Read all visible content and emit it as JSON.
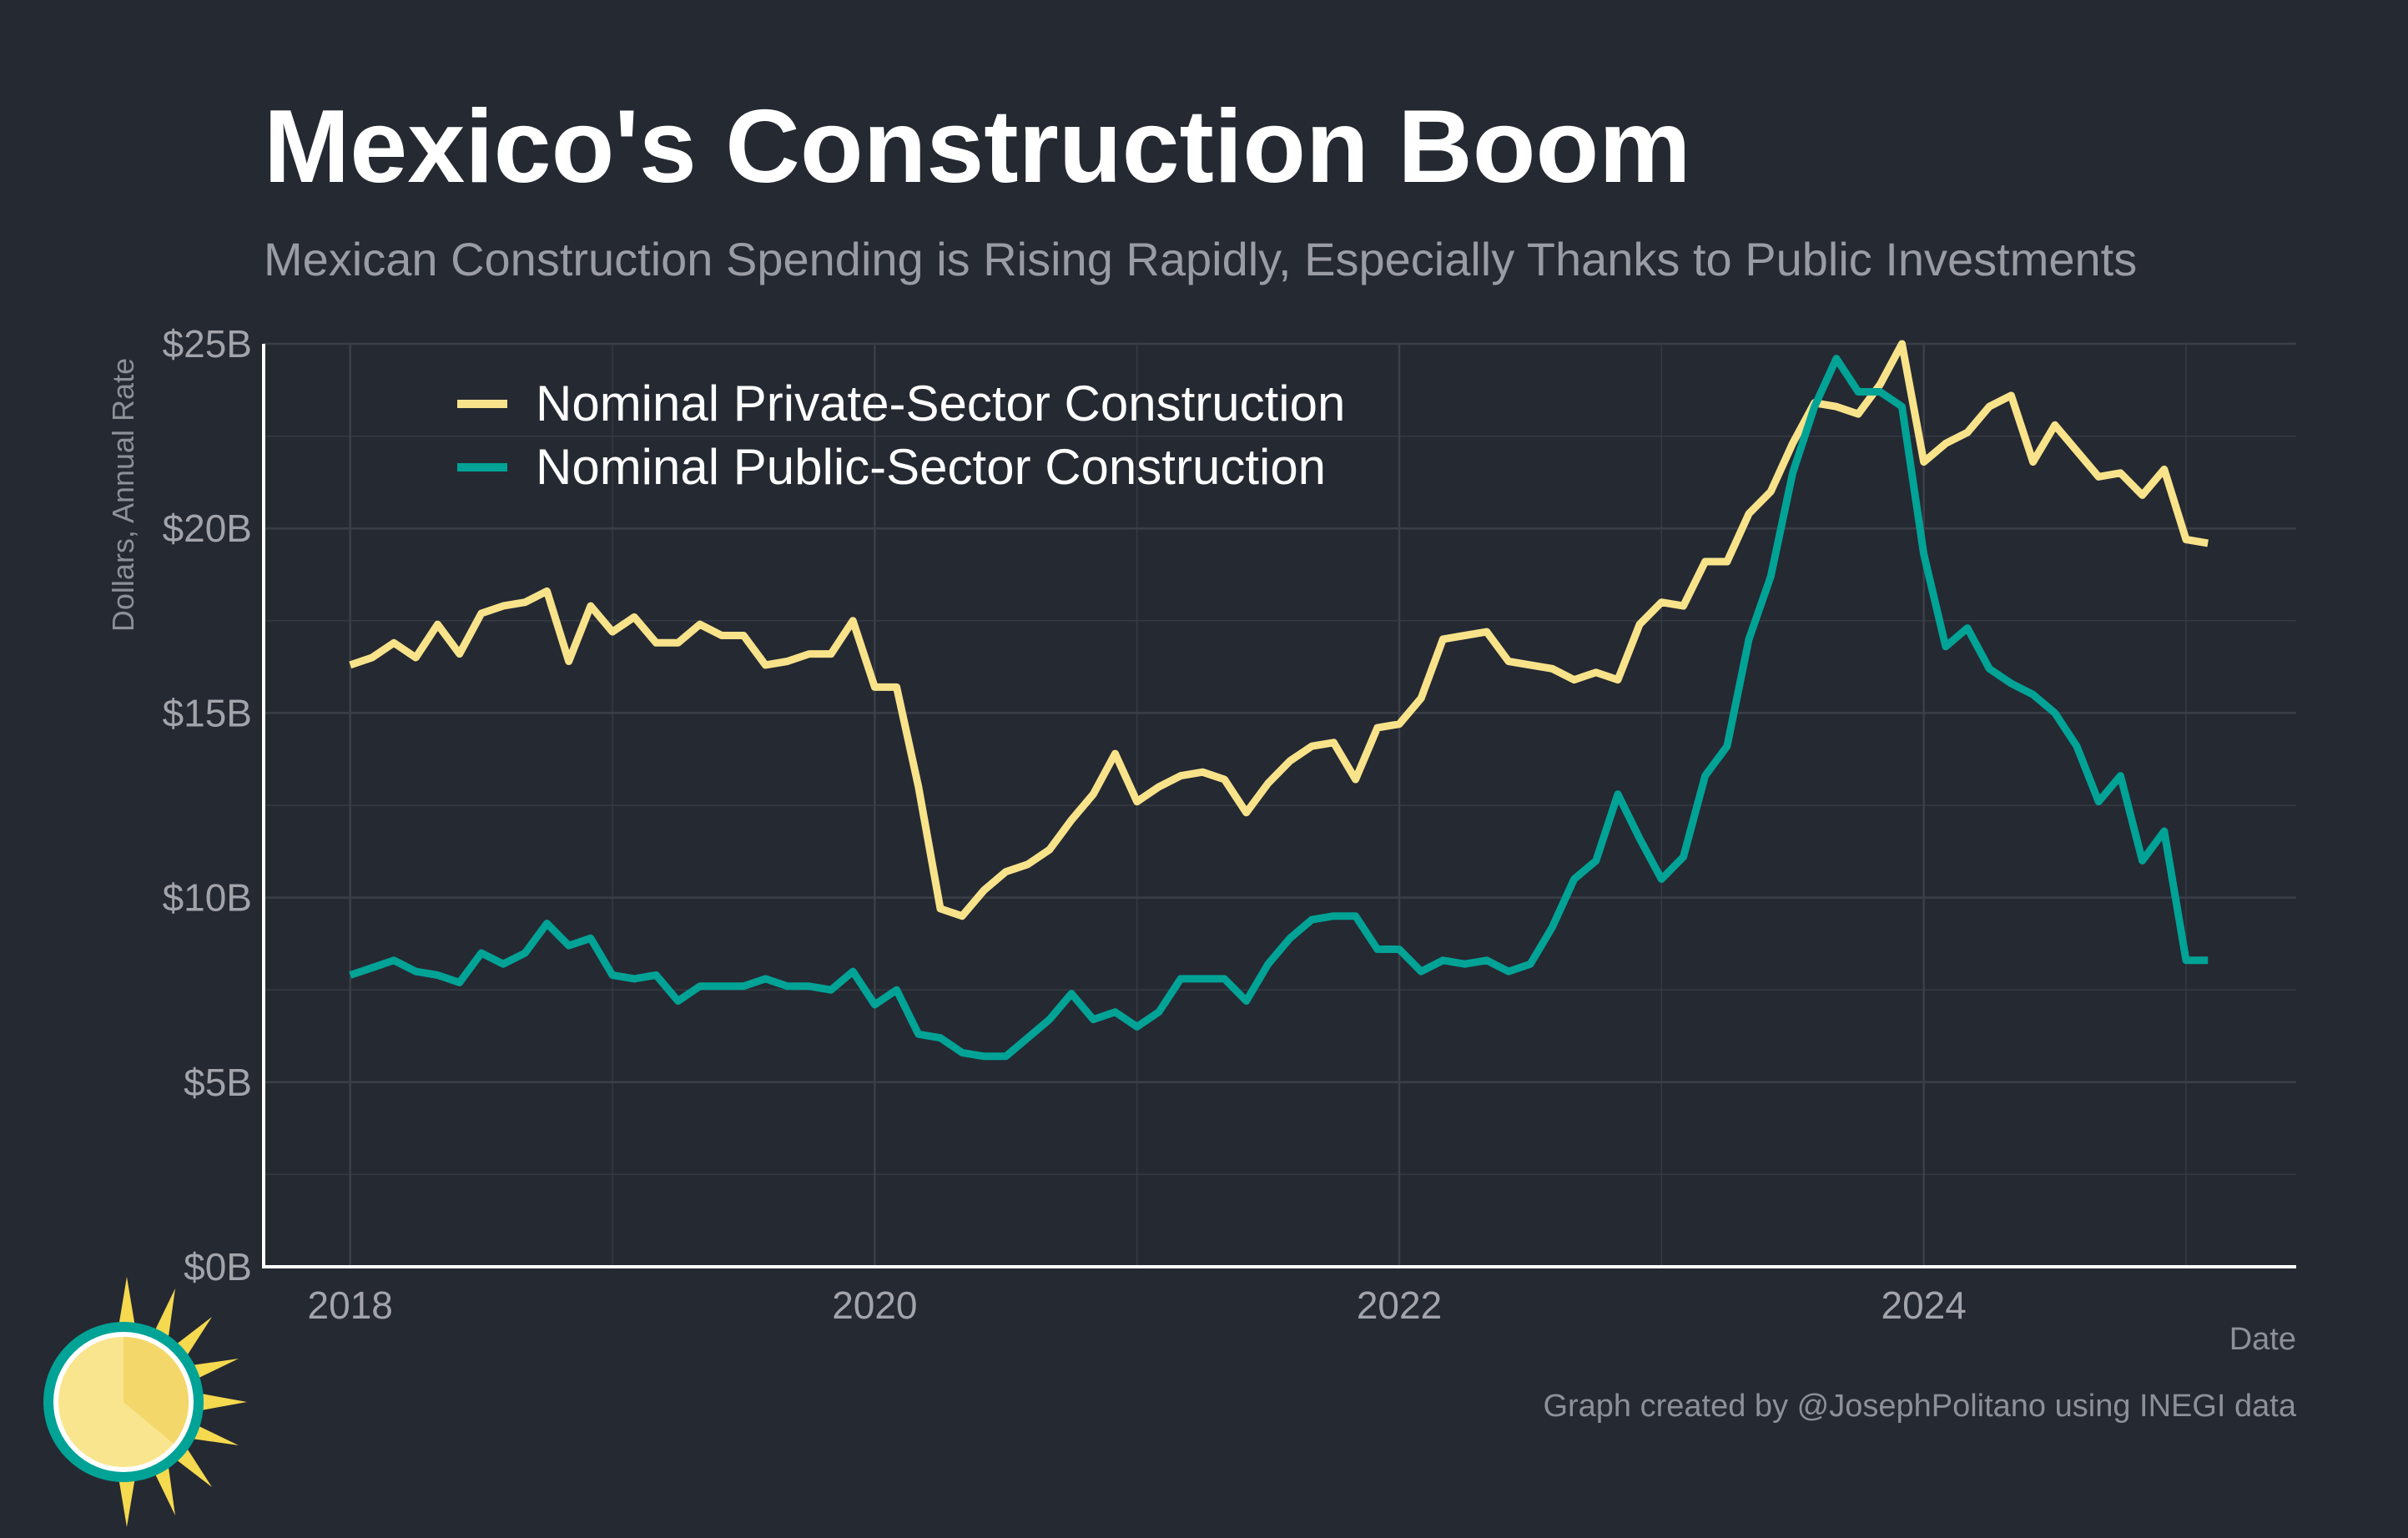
{
  "title": "Mexico's Construction Boom",
  "subtitle": "Mexican Construction Spending is Rising Rapidly, Especially Thanks to Public Investments",
  "caption": "Graph created by @JosephPolitano using INEGI data",
  "logo_icon": "sun-icon",
  "colors": {
    "background": "#252932",
    "private": "#f8e38a",
    "public": "#00a396",
    "grid": "#3b3f48",
    "axis": "#ffffff"
  },
  "chart_data": {
    "type": "line",
    "title": "Mexico's Construction Boom",
    "xlabel": "Date",
    "ylabel": "Dollars, Annual Rate",
    "x_start": "2018-01",
    "x_frequency": "monthly",
    "xlim": [
      2017.67,
      2025.42
    ],
    "ylim": [
      0,
      25
    ],
    "xticks": [
      2018,
      2020,
      2022,
      2024
    ],
    "xtick_labels": [
      "2018",
      "2020",
      "2022",
      "2024"
    ],
    "yticks": [
      0,
      5,
      10,
      15,
      20,
      25
    ],
    "ytick_labels": [
      "$0B",
      "$5B",
      "$10B",
      "$15B",
      "$20B",
      "$25B"
    ],
    "grid": true,
    "legend_position": "top-left",
    "series": [
      {
        "name": "Nominal Private-Sector Construction",
        "color": "#f8e38a",
        "values": [
          16.3,
          16.5,
          16.9,
          16.5,
          17.4,
          16.6,
          17.7,
          17.9,
          18.0,
          18.3,
          16.4,
          17.9,
          17.2,
          17.6,
          16.9,
          16.9,
          17.4,
          17.1,
          17.1,
          16.3,
          16.4,
          16.6,
          16.6,
          17.5,
          15.7,
          15.7,
          13.0,
          9.7,
          9.5,
          10.2,
          10.7,
          10.9,
          11.3,
          12.1,
          12.8,
          13.9,
          12.6,
          13.0,
          13.3,
          13.4,
          13.2,
          12.3,
          13.1,
          13.7,
          14.1,
          14.2,
          13.2,
          14.6,
          14.7,
          15.4,
          17.0,
          17.1,
          17.2,
          16.4,
          16.3,
          16.2,
          15.9,
          16.1,
          15.9,
          17.4,
          18.0,
          17.9,
          19.1,
          19.1,
          20.4,
          21.0,
          22.3,
          23.4,
          23.3,
          23.1,
          23.9,
          25.0,
          21.8,
          22.3,
          22.6,
          23.3,
          23.6,
          21.8,
          22.8,
          22.1,
          21.4,
          21.5,
          20.9,
          21.6,
          19.7,
          19.6
        ]
      },
      {
        "name": "Nominal Public-Sector Construction",
        "color": "#00a396",
        "values": [
          7.9,
          8.1,
          8.3,
          8.0,
          7.9,
          7.7,
          8.5,
          8.2,
          8.5,
          9.3,
          8.7,
          8.9,
          7.9,
          7.8,
          7.9,
          7.2,
          7.6,
          7.6,
          7.6,
          7.8,
          7.6,
          7.6,
          7.5,
          8.0,
          7.1,
          7.5,
          6.3,
          6.2,
          5.8,
          5.7,
          5.7,
          6.2,
          6.7,
          7.4,
          6.7,
          6.9,
          6.5,
          6.9,
          7.8,
          7.8,
          7.8,
          7.2,
          8.2,
          8.9,
          9.4,
          9.5,
          9.5,
          8.6,
          8.6,
          8.0,
          8.3,
          8.2,
          8.3,
          8.0,
          8.2,
          9.2,
          10.5,
          11.0,
          12.8,
          11.6,
          10.5,
          11.1,
          13.3,
          14.1,
          17.0,
          18.7,
          21.5,
          23.3,
          24.6,
          23.7,
          23.7,
          23.3,
          19.3,
          16.8,
          17.3,
          16.2,
          15.8,
          15.5,
          15.0,
          14.1,
          12.6,
          13.3,
          11.0,
          11.8,
          8.3,
          8.3
        ]
      }
    ]
  }
}
